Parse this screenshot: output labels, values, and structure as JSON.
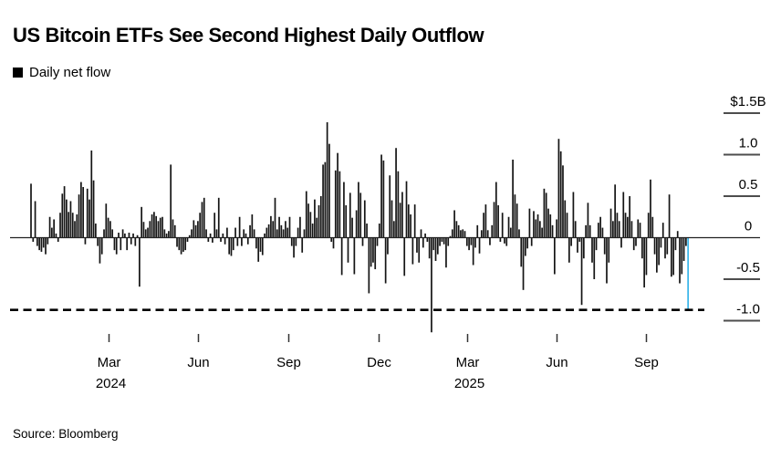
{
  "header": {
    "title": "US Bitcoin ETFs See Second Highest Daily Outflow",
    "legend_label": "Daily net flow"
  },
  "source": "Source: Bloomberg",
  "colors": {
    "bar": "#141414",
    "highlight": "#38b5ea",
    "axis": "#222222",
    "tick_line": "#4d4d4d",
    "dashed_line": "#000000",
    "background": "#ffffff"
  },
  "chart_data": {
    "type": "bar",
    "title": "US Bitcoin ETFs See Second Highest Daily Outflow",
    "series_name": "Daily net flow",
    "unit": "USD billions",
    "ylabel": "",
    "xlabel": "",
    "grid": false,
    "legend_position": "top-left",
    "ylim": [
      -1.3,
      1.6
    ],
    "y_ticks": [
      {
        "label": "$1.5B",
        "value": 1.5
      },
      {
        "label": "1.0",
        "value": 1.0
      },
      {
        "label": "0.5",
        "value": 0.5
      },
      {
        "label": "0",
        "value": 0.0
      },
      {
        "label": "-0.5",
        "value": -0.5
      },
      {
        "label": "-1.0",
        "value": -1.0
      }
    ],
    "x_ticks": [
      {
        "label": "Mar",
        "year": "2024"
      },
      {
        "label": "Jun",
        "year": ""
      },
      {
        "label": "Sep",
        "year": ""
      },
      {
        "label": "Dec",
        "year": ""
      },
      {
        "label": "Mar",
        "year": "2025"
      },
      {
        "label": "Jun",
        "year": ""
      },
      {
        "label": "Sep",
        "year": ""
      }
    ],
    "reference_line": {
      "value": -0.87,
      "style": "dashed"
    },
    "highlight": {
      "index": 315,
      "value": -0.87
    },
    "extremes": {
      "record_outflow": -1.14,
      "record_inflow": 1.39,
      "second_highest_outflow": -0.87
    },
    "values": [
      0.65,
      -0.05,
      0.44,
      -0.1,
      -0.15,
      -0.17,
      -0.12,
      -0.2,
      -0.08,
      0.25,
      0.12,
      0.22,
      0.05,
      -0.05,
      0.3,
      0.53,
      0.62,
      0.46,
      0.31,
      0.44,
      0.3,
      0.2,
      0.28,
      0.52,
      0.67,
      0.61,
      -0.08,
      0.59,
      0.46,
      1.05,
      0.69,
      0.17,
      -0.1,
      -0.31,
      -0.2,
      0.1,
      0.41,
      0.24,
      0.2,
      0.1,
      -0.15,
      -0.2,
      0.06,
      -0.15,
      0.1,
      0.05,
      -0.15,
      0.06,
      -0.08,
      0.05,
      -0.1,
      0.03,
      -0.59,
      0.37,
      0.19,
      0.1,
      0.12,
      0.2,
      0.28,
      0.31,
      0.26,
      0.2,
      0.24,
      0.25,
      0.1,
      0.05,
      0.08,
      0.88,
      0.22,
      0.15,
      -0.11,
      -0.15,
      -0.2,
      -0.17,
      -0.15,
      -0.05,
      0.03,
      0.1,
      0.21,
      0.15,
      0.2,
      0.3,
      0.43,
      0.48,
      0.1,
      -0.05,
      0.05,
      -0.06,
      0.3,
      0.1,
      0.48,
      -0.05,
      0.05,
      -0.08,
      0.12,
      -0.2,
      -0.22,
      -0.15,
      0.12,
      -0.1,
      0.25,
      -0.1,
      0.1,
      0.05,
      -0.08,
      0.15,
      0.28,
      0.1,
      -0.13,
      -0.29,
      -0.17,
      -0.21,
      0.05,
      0.12,
      0.16,
      0.26,
      0.2,
      0.48,
      0.1,
      0.25,
      0.15,
      0.1,
      0.2,
      0.12,
      0.25,
      -0.1,
      -0.24,
      -0.1,
      0.12,
      0.25,
      -0.18,
      0.1,
      0.56,
      0.41,
      0.31,
      0.17,
      0.46,
      0.24,
      0.39,
      0.5,
      0.88,
      0.91,
      1.39,
      1.13,
      -0.05,
      -0.13,
      0.81,
      1.02,
      0.8,
      -0.45,
      0.67,
      0.39,
      -0.3,
      0.54,
      0.24,
      -0.44,
      0.33,
      0.67,
      0.54,
      -0.1,
      0.45,
      0.17,
      -0.67,
      -0.35,
      -0.3,
      -0.38,
      -0.1,
      0.17,
      1.0,
      0.93,
      -0.55,
      -0.2,
      0.75,
      0.45,
      0.2,
      1.08,
      0.8,
      0.42,
      0.55,
      -0.46,
      0.68,
      0.4,
      0.28,
      -0.32,
      0.4,
      -0.18,
      -0.3,
      0.1,
      -0.12,
      0.05,
      -0.05,
      -0.25,
      -1.14,
      -0.15,
      -0.28,
      -0.2,
      -0.1,
      -0.05,
      -0.08,
      -0.36,
      -0.1,
      0.02,
      0.1,
      0.33,
      0.2,
      0.15,
      0.09,
      0.1,
      0.08,
      -0.1,
      -0.15,
      -0.09,
      -0.33,
      -0.12,
      0.15,
      -0.19,
      0.09,
      0.3,
      0.4,
      0.09,
      -0.09,
      0.15,
      0.43,
      0.67,
      0.39,
      -0.05,
      0.3,
      -0.07,
      -0.1,
      0.25,
      0.12,
      0.94,
      0.52,
      0.41,
      0.1,
      -0.35,
      -0.63,
      -0.22,
      -0.13,
      0.35,
      -0.1,
      0.32,
      0.22,
      0.28,
      0.2,
      0.12,
      0.59,
      0.54,
      0.35,
      0.28,
      0.15,
      -0.44,
      0.22,
      1.19,
      1.04,
      0.87,
      0.45,
      0.3,
      -0.3,
      -0.1,
      0.55,
      0.2,
      -0.18,
      -0.05,
      -0.81,
      -0.25,
      0.15,
      0.42,
      0.15,
      -0.3,
      -0.5,
      -0.15,
      0.18,
      0.25,
      0.12,
      -0.2,
      -0.55,
      -0.3,
      0.35,
      0.2,
      0.64,
      0.3,
      0.2,
      -0.12,
      0.55,
      0.3,
      0.25,
      0.5,
      0.2,
      -0.15,
      -0.1,
      0.22,
      0.18,
      -0.25,
      -0.6,
      -0.45,
      0.3,
      0.7,
      0.25,
      -0.2,
      -0.42,
      -0.33,
      -0.12,
      0.18,
      -0.25,
      -0.2,
      0.52,
      -0.47,
      -0.45,
      -0.15,
      0.08,
      -0.55,
      -0.44,
      -0.28,
      -0.1,
      -0.87
    ]
  }
}
